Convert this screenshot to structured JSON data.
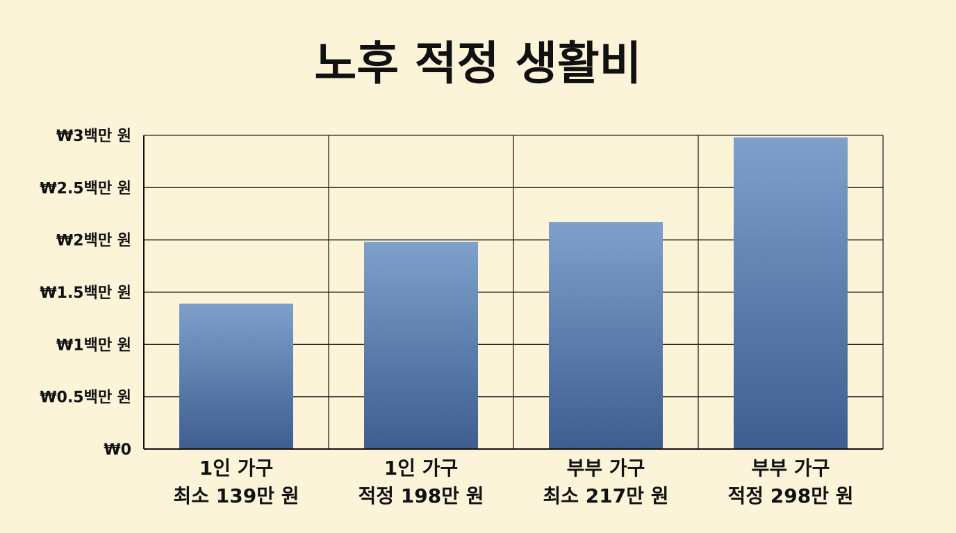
{
  "chart_data": {
    "type": "bar",
    "title": "노후 적정 생활비",
    "xlabel": "",
    "ylabel": "",
    "ylim": [
      0,
      3
    ],
    "grid": true,
    "categories": [
      [
        "1인 가구",
        "최소 139만 원"
      ],
      [
        "1인 가구",
        "적정 198만 원"
      ],
      [
        "부부 가구",
        "최소 217만 원"
      ],
      [
        "부부 가구",
        "적정 298만 원"
      ]
    ],
    "values": [
      1.39,
      1.98,
      2.17,
      2.98
    ],
    "y_ticks": [
      {
        "value": 0,
        "label": "₩0"
      },
      {
        "value": 0.5,
        "label": "₩0.5백만 원"
      },
      {
        "value": 1,
        "label": "₩1백만 원"
      },
      {
        "value": 1.5,
        "label": "₩1.5백만 원"
      },
      {
        "value": 2,
        "label": "₩2백만 원"
      },
      {
        "value": 2.5,
        "label": "₩2.5백만 원"
      },
      {
        "value": 3,
        "label": "₩3백만 원"
      }
    ],
    "colors": {
      "bar_top": "#7ea0cb",
      "bar_bottom": "#3d5e8f",
      "grid": "#222222",
      "background": "#fbf4d9"
    }
  }
}
